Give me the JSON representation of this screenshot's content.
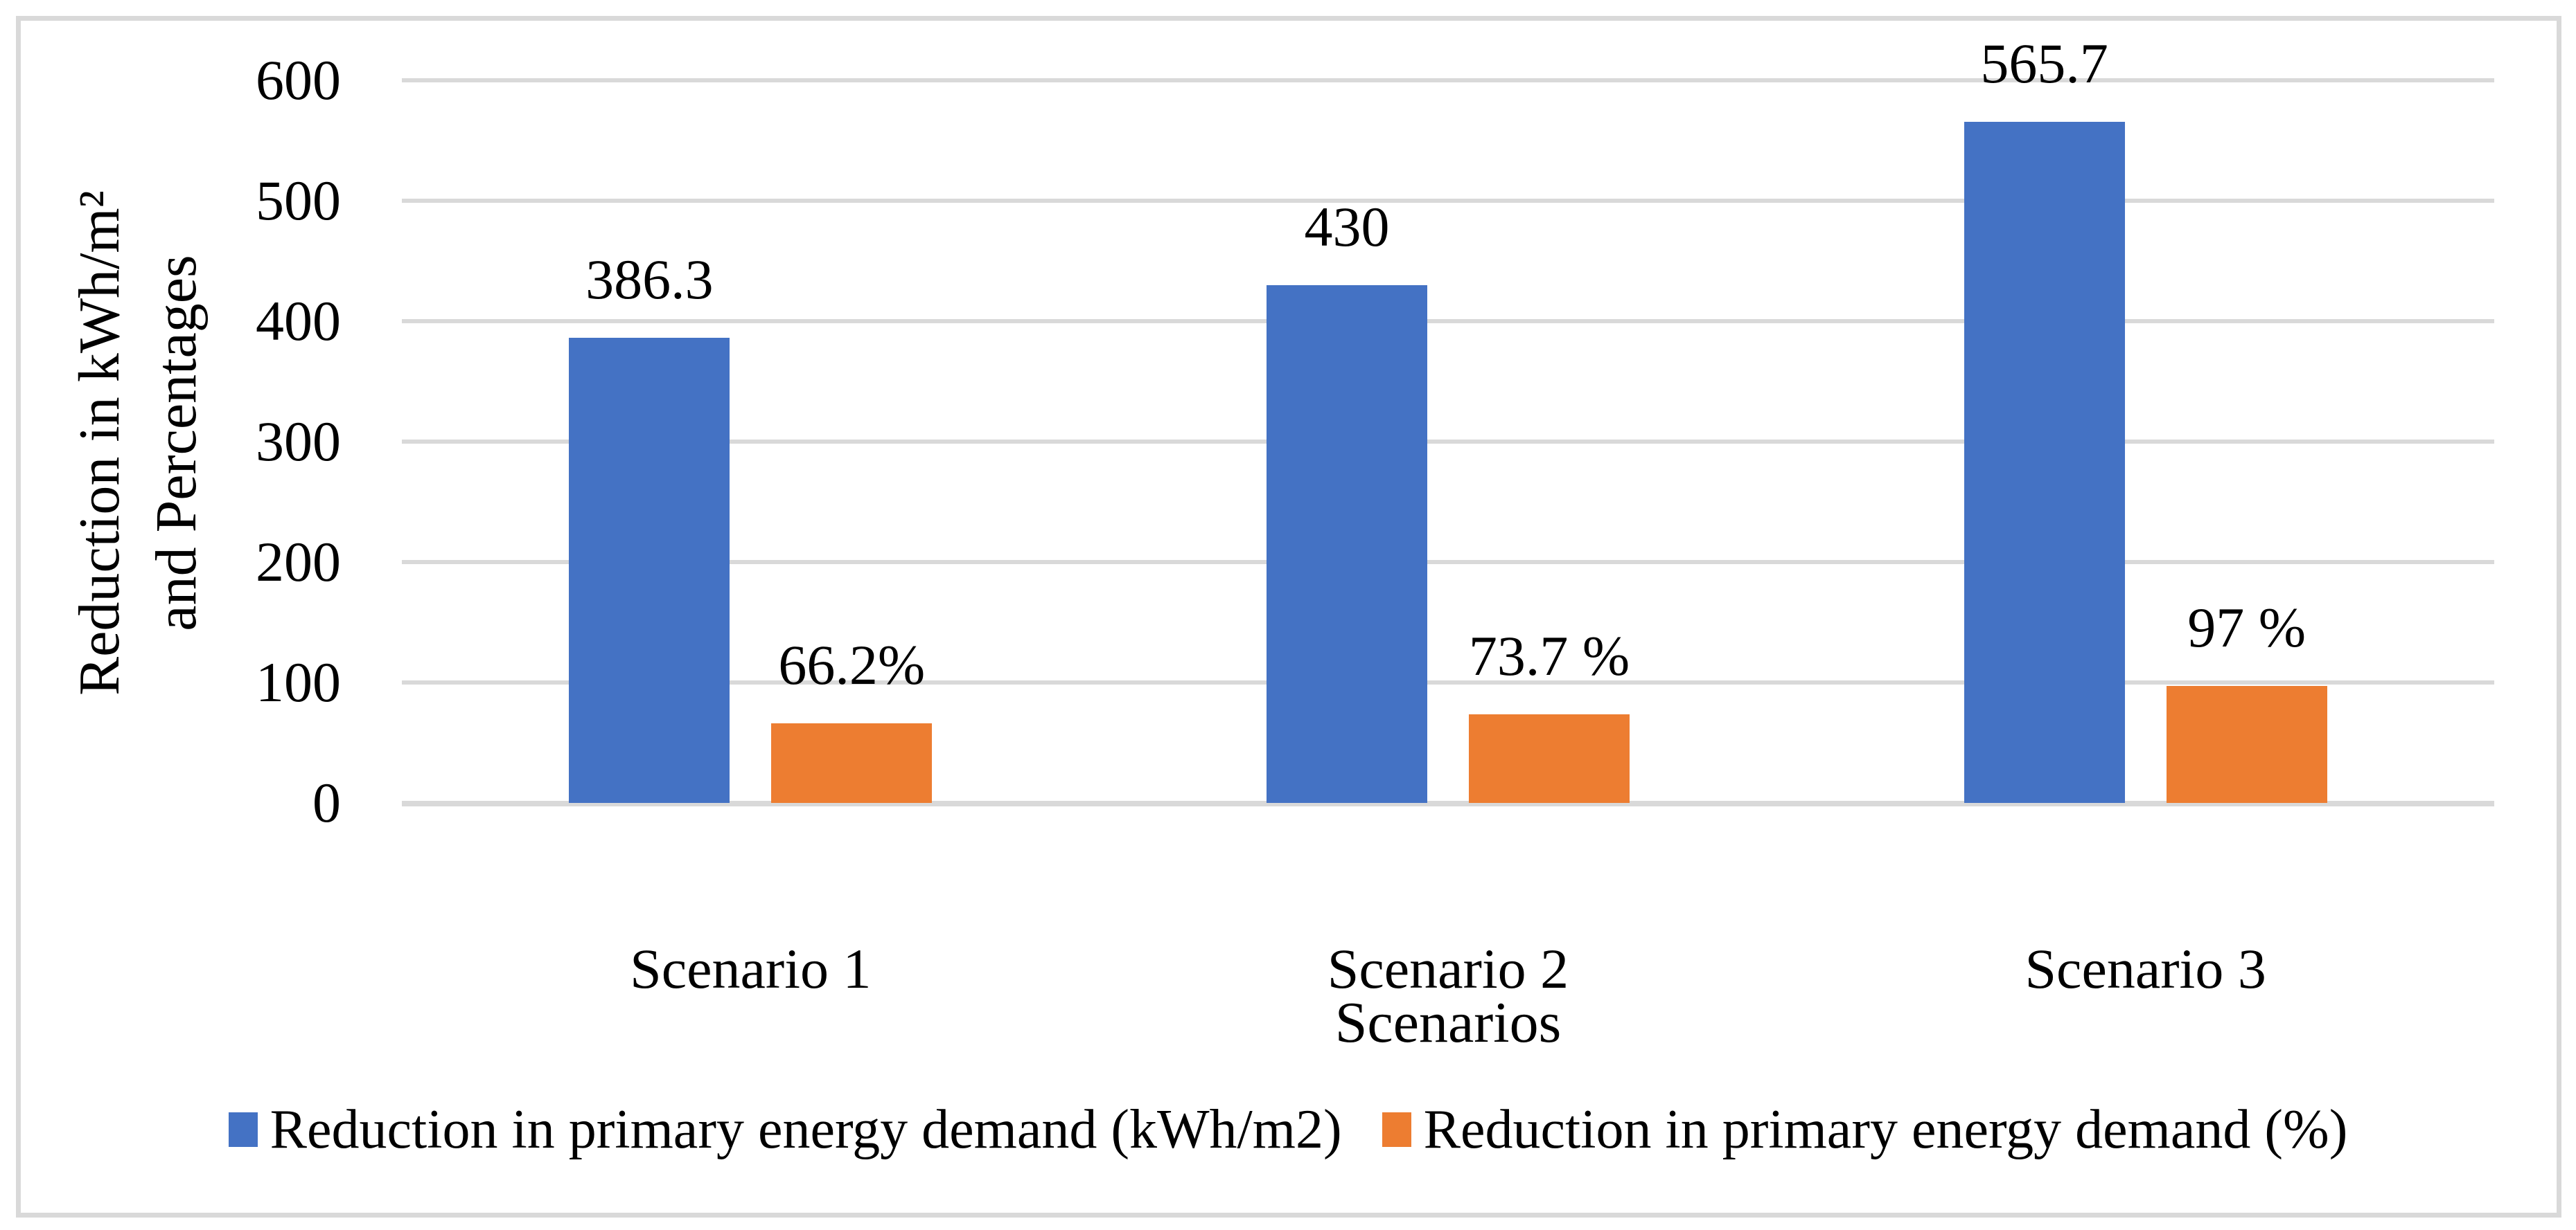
{
  "chart_data": {
    "type": "bar",
    "title": "",
    "categories": [
      "Scenario 1",
      "Scenario 2",
      "Scenario 3"
    ],
    "series": [
      {
        "name": "Reduction in primary energy demand (kWh/m2)",
        "color": "#4472C4",
        "values": [
          386.3,
          430,
          565.7
        ],
        "data_labels": [
          "386.3",
          "430",
          "565.7"
        ]
      },
      {
        "name": "Reduction in primary energy demand (%)",
        "color": "#ED7D31",
        "values": [
          66.2,
          73.7,
          97
        ],
        "data_labels": [
          "66.2%",
          "73.7 %",
          "97 %"
        ]
      }
    ],
    "xlabel": "Scenarios",
    "ylabel_lines": [
      "Reduction in kWh/m²",
      "and Percentages"
    ],
    "ylim": [
      0,
      600
    ],
    "ytick_step": 100,
    "yticks": [
      "600",
      "500",
      "400",
      "300",
      "200",
      "100",
      "0"
    ],
    "grid": true,
    "legend_position": "bottom",
    "colors": {
      "series1": "#4472C4",
      "series2": "#ED7D31",
      "gridline": "#D9D9D9",
      "frame_border": "#D9D9D9",
      "background": "#FFFFFF",
      "text": "#000000"
    }
  }
}
